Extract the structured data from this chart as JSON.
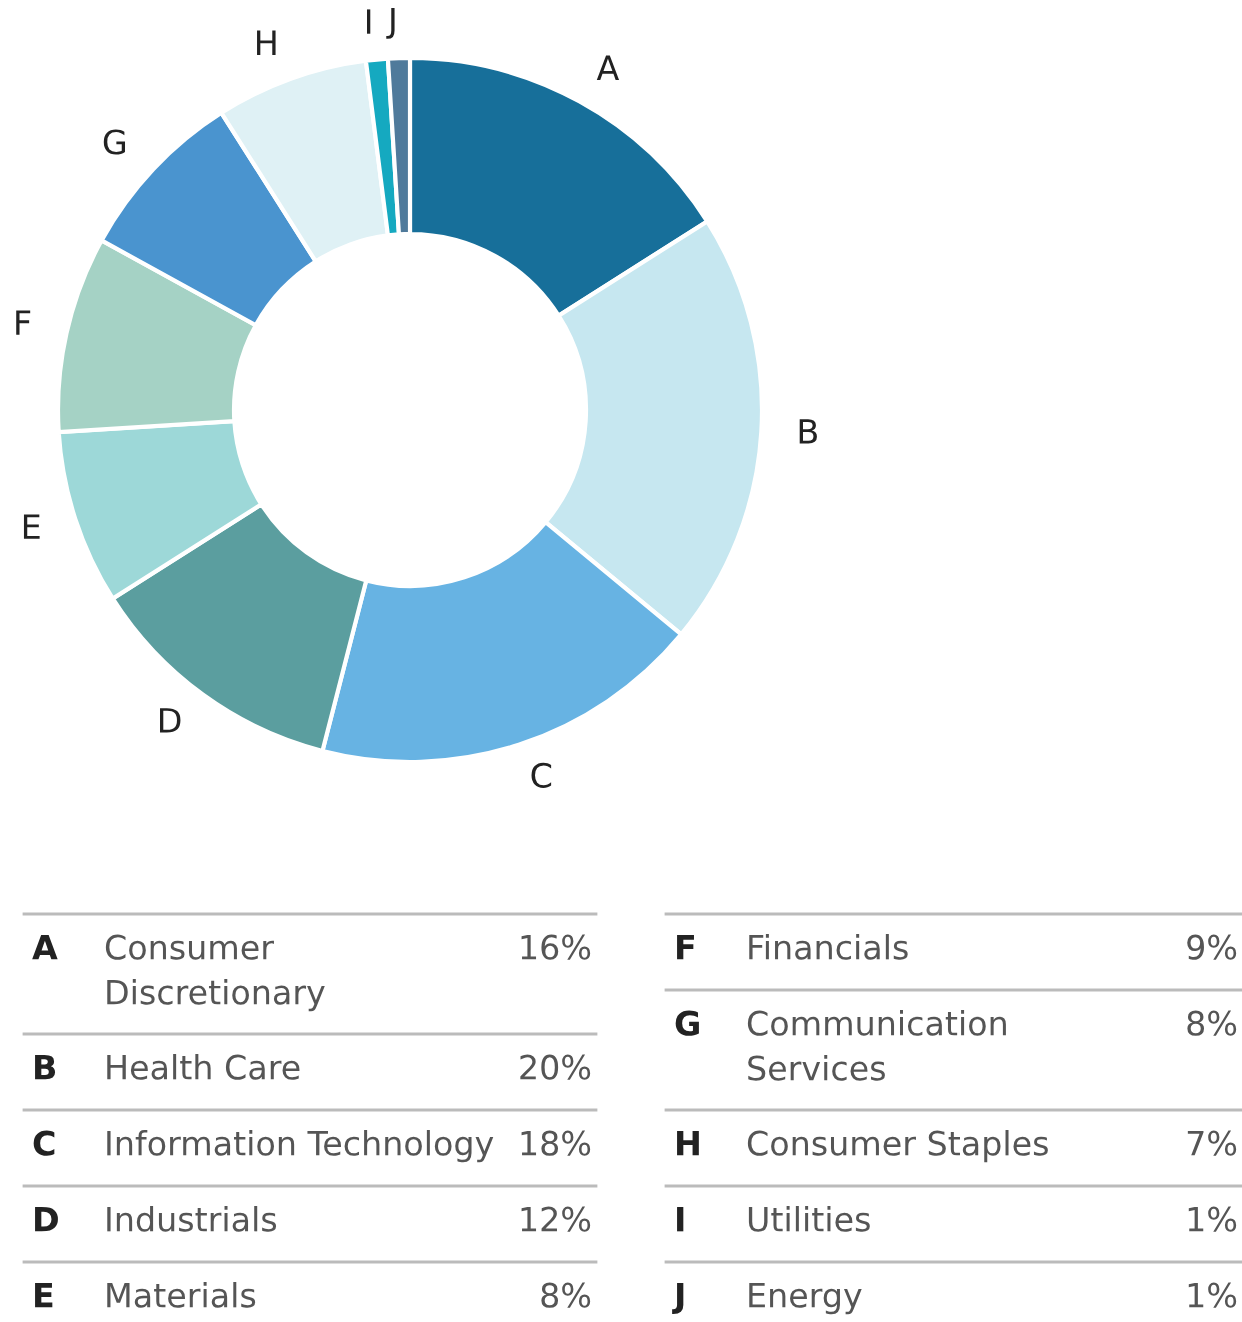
{
  "chart_data": {
    "type": "donut",
    "categories": [
      "A",
      "B",
      "C",
      "D",
      "E",
      "F",
      "G",
      "H",
      "I",
      "J"
    ],
    "values": [
      16,
      20,
      18,
      12,
      8,
      9,
      8,
      7,
      1,
      1
    ],
    "colors": [
      "#176f9a",
      "#c6e7f0",
      "#67b3e3",
      "#5b9e9f",
      "#9dd8d8",
      "#a5d2c5",
      "#4a94cf",
      "#dff1f5",
      "#15a9c0",
      "#4f7a9b"
    ],
    "annotations": [
      "Consumer\nDiscretionary",
      "Health Care",
      "Information Technology",
      "Industrials",
      "Materials",
      "Financials",
      "Communication\nServices",
      "Consumer Staples",
      "Utilities",
      "Energy",
      "16%",
      "20%",
      "18%",
      "12%",
      "8%",
      "9%",
      "8%",
      "7%",
      "1%",
      "1%"
    ]
  }
}
